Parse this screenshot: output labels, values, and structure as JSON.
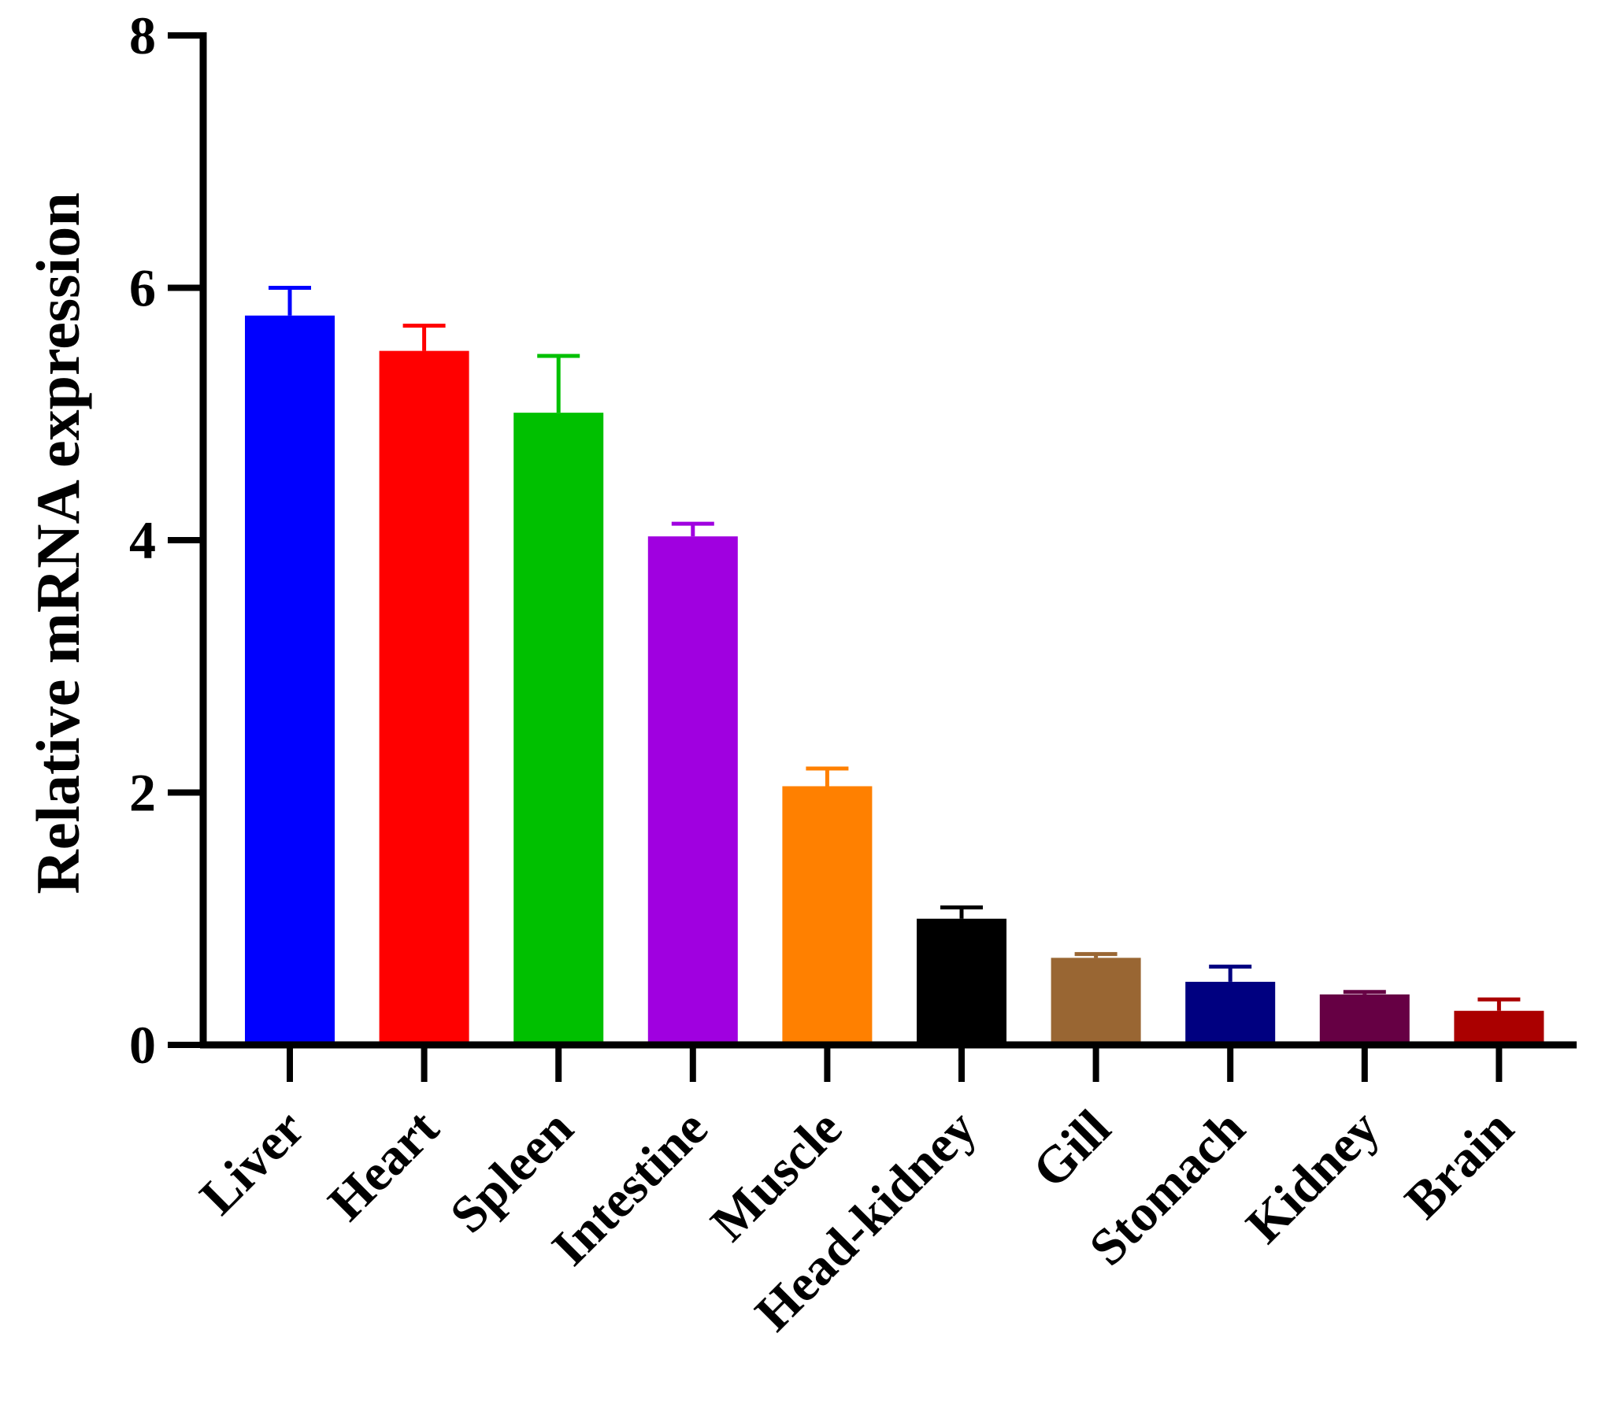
{
  "chart_data": {
    "type": "bar",
    "title": "",
    "xlabel": "",
    "ylabel": "Relative mRNA expression",
    "ylim": [
      0,
      8
    ],
    "yticks": [
      0,
      2,
      4,
      6,
      8
    ],
    "grid": false,
    "legend": "none",
    "categories": [
      "Liver",
      "Heart",
      "Spleen",
      "Intestine",
      "Muscle",
      "Head-kidney",
      "Gill",
      "Stomach",
      "Kidney",
      "Brain"
    ],
    "values": [
      5.78,
      5.5,
      5.01,
      4.03,
      2.05,
      1.0,
      0.69,
      0.5,
      0.4,
      0.27
    ],
    "errors": [
      0.22,
      0.2,
      0.45,
      0.1,
      0.14,
      0.09,
      0.03,
      0.12,
      0.02,
      0.09
    ],
    "colors": [
      "#0000ff",
      "#ff0000",
      "#00c000",
      "#a000e0",
      "#ff8000",
      "#000000",
      "#996633",
      "#000080",
      "#660044",
      "#aa0000"
    ]
  }
}
